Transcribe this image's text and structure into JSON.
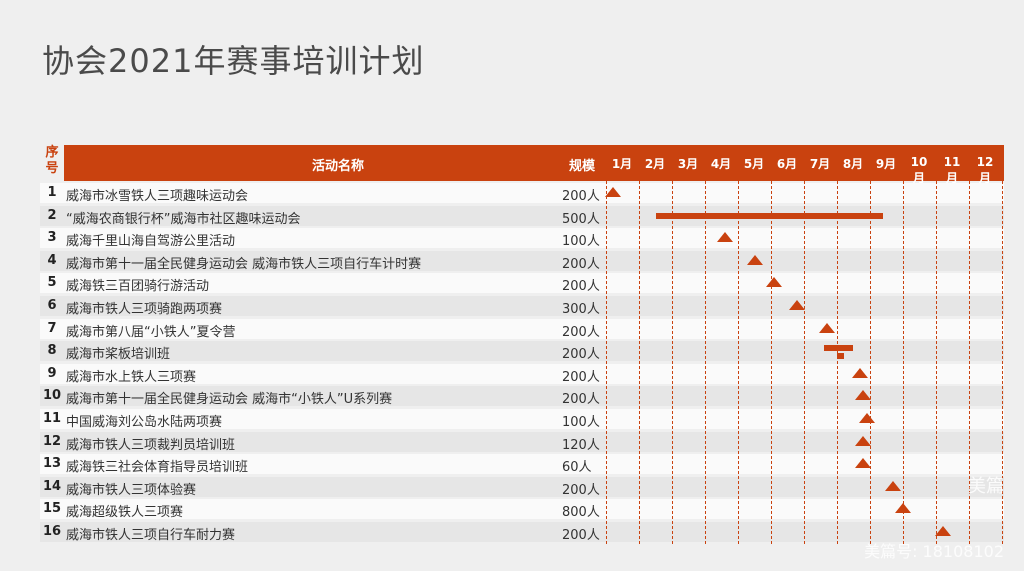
{
  "title": "协会2021年赛事培训计划",
  "header": {
    "idx_label": "序号",
    "name_label": "活动名称",
    "scale_label": "规模"
  },
  "months": [
    "1月",
    "2月",
    "3月",
    "4月",
    "5月",
    "6月",
    "7月",
    "8月",
    "9月",
    "10月",
    "11月",
    "12月"
  ],
  "colors": {
    "accent": "#c9420f"
  },
  "watermark": {
    "logo_text": "美篇",
    "id_text": "美篇号: 18108102"
  },
  "chart_data": {
    "type": "gantt",
    "x_unit": "month",
    "x_range": [
      1,
      12
    ],
    "columns": [
      "序号",
      "活动名称",
      "规模"
    ],
    "rows": [
      {
        "idx": "1",
        "name": "威海市冰雪铁人三项趣味运动会",
        "scale": "200人",
        "marker": "milestone",
        "month": 1.2
      },
      {
        "idx": "2",
        "name": "“威海农商银行杯”威海市社区趣味运动会",
        "scale": "500人",
        "marker": "range",
        "start": 2.5,
        "end": 9.4
      },
      {
        "idx": "3",
        "name": "威海千里山海自驾游公里活动",
        "scale": "100人",
        "marker": "milestone",
        "month": 4.6
      },
      {
        "idx": "4",
        "name": "威海市第十一届全民健身运动会  威海市铁人三项自行车计时赛",
        "scale": "200人",
        "marker": "milestone",
        "month": 5.5
      },
      {
        "idx": "5",
        "name": "威海铁三百团骑行游活动",
        "scale": "200人",
        "marker": "milestone",
        "month": 6.1
      },
      {
        "idx": "6",
        "name": "威海市铁人三项骑跑两项赛",
        "scale": "300人",
        "marker": "milestone",
        "month": 6.8
      },
      {
        "idx": "7",
        "name": "威海市第八届“小铁人”夏令营",
        "scale": "200人",
        "marker": "milestone",
        "month": 7.7
      },
      {
        "idx": "8",
        "name": "威海市桨板培训班",
        "scale": "200人",
        "marker": "range2",
        "start": 7.6,
        "end": 8.5,
        "start2": 8.0,
        "end2": 8.2
      },
      {
        "idx": "9",
        "name": "威海市水上铁人三项赛",
        "scale": "200人",
        "marker": "milestone",
        "month": 8.7
      },
      {
        "idx": "10",
        "name": "威海市第十一届全民健身运动会  威海市“小铁人”U系列赛",
        "scale": "200人",
        "marker": "milestone",
        "month": 8.8
      },
      {
        "idx": "11",
        "name": "中国威海刘公岛水陆两项赛",
        "scale": "100人",
        "marker": "milestone",
        "month": 8.9
      },
      {
        "idx": "12",
        "name": "威海市铁人三项裁判员培训班",
        "scale": "120人",
        "marker": "milestone",
        "month": 8.8
      },
      {
        "idx": "13",
        "name": "威海铁三社会体育指导员培训班",
        "scale": "60人",
        "marker": "milestone",
        "month": 8.8
      },
      {
        "idx": "14",
        "name": "威海市铁人三项体验赛",
        "scale": "200人",
        "marker": "milestone",
        "month": 9.7
      },
      {
        "idx": "15",
        "name": "威海超级铁人三项赛",
        "scale": "800人",
        "marker": "milestone",
        "month": 10.0
      },
      {
        "idx": "16",
        "name": "威海市铁人三项自行车耐力赛",
        "scale": "200人",
        "marker": "milestone",
        "month": 11.2
      }
    ]
  }
}
